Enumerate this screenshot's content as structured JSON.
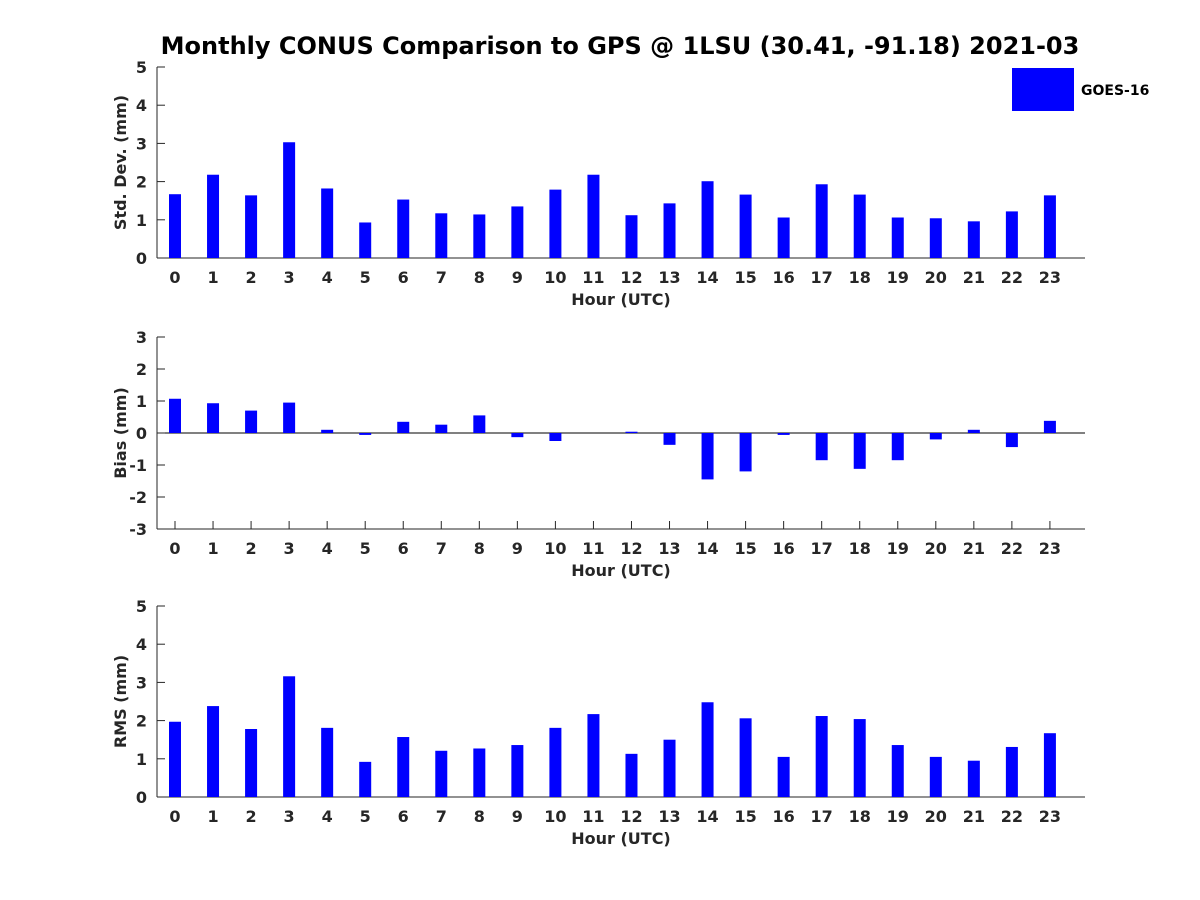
{
  "figure_title": "Monthly CONUS Comparison to GPS @ 1LSU (30.41, -91.18) 2021-03",
  "legend": {
    "label": "GOES-16",
    "color": "#0000FF"
  },
  "chart_data": [
    {
      "type": "bar",
      "categories": [
        "0",
        "1",
        "2",
        "3",
        "4",
        "5",
        "6",
        "7",
        "8",
        "9",
        "10",
        "11",
        "12",
        "13",
        "14",
        "15",
        "16",
        "17",
        "18",
        "19",
        "20",
        "21",
        "22",
        "23"
      ],
      "series": [
        {
          "name": "GOES-16",
          "values": [
            1.67,
            2.18,
            1.64,
            3.03,
            1.82,
            0.93,
            1.53,
            1.17,
            1.14,
            1.35,
            1.79,
            2.18,
            1.12,
            1.43,
            2.01,
            1.66,
            1.06,
            1.93,
            1.66,
            1.06,
            1.04,
            0.96,
            1.22,
            1.64
          ]
        }
      ],
      "xlabel": "Hour (UTC)",
      "ylabel": "Std. Dev. (mm)",
      "ylim": [
        0,
        5
      ],
      "yticks": [
        "0",
        "1",
        "2",
        "3",
        "4",
        "5"
      ]
    },
    {
      "type": "bar",
      "categories": [
        "0",
        "1",
        "2",
        "3",
        "4",
        "5",
        "6",
        "7",
        "8",
        "9",
        "10",
        "11",
        "12",
        "13",
        "14",
        "15",
        "16",
        "17",
        "18",
        "19",
        "20",
        "21",
        "22",
        "23"
      ],
      "series": [
        {
          "name": "GOES-16",
          "values": [
            1.07,
            0.93,
            0.7,
            0.95,
            0.1,
            -0.06,
            0.35,
            0.26,
            0.55,
            -0.13,
            -0.25,
            0.0,
            0.04,
            -0.37,
            -1.45,
            -1.2,
            -0.06,
            -0.85,
            -1.12,
            -0.85,
            -0.2,
            0.1,
            -0.44,
            0.38
          ]
        }
      ],
      "xlabel": "Hour (UTC)",
      "ylabel": "Bias (mm)",
      "ylim": [
        -3,
        3
      ],
      "yticks": [
        "-3",
        "-2",
        "-1",
        "0",
        "1",
        "2",
        "3"
      ]
    },
    {
      "type": "bar",
      "categories": [
        "0",
        "1",
        "2",
        "3",
        "4",
        "5",
        "6",
        "7",
        "8",
        "9",
        "10",
        "11",
        "12",
        "13",
        "14",
        "15",
        "16",
        "17",
        "18",
        "19",
        "20",
        "21",
        "22",
        "23"
      ],
      "series": [
        {
          "name": "GOES-16",
          "values": [
            1.97,
            2.38,
            1.78,
            3.16,
            1.81,
            0.92,
            1.57,
            1.21,
            1.27,
            1.36,
            1.81,
            2.17,
            1.13,
            1.5,
            2.48,
            2.06,
            1.05,
            2.12,
            2.04,
            1.36,
            1.05,
            0.95,
            1.31,
            1.67
          ]
        }
      ],
      "xlabel": "Hour (UTC)",
      "ylabel": "RMS (mm)",
      "ylim": [
        0,
        5
      ],
      "yticks": [
        "0",
        "1",
        "2",
        "3",
        "4",
        "5"
      ]
    }
  ]
}
